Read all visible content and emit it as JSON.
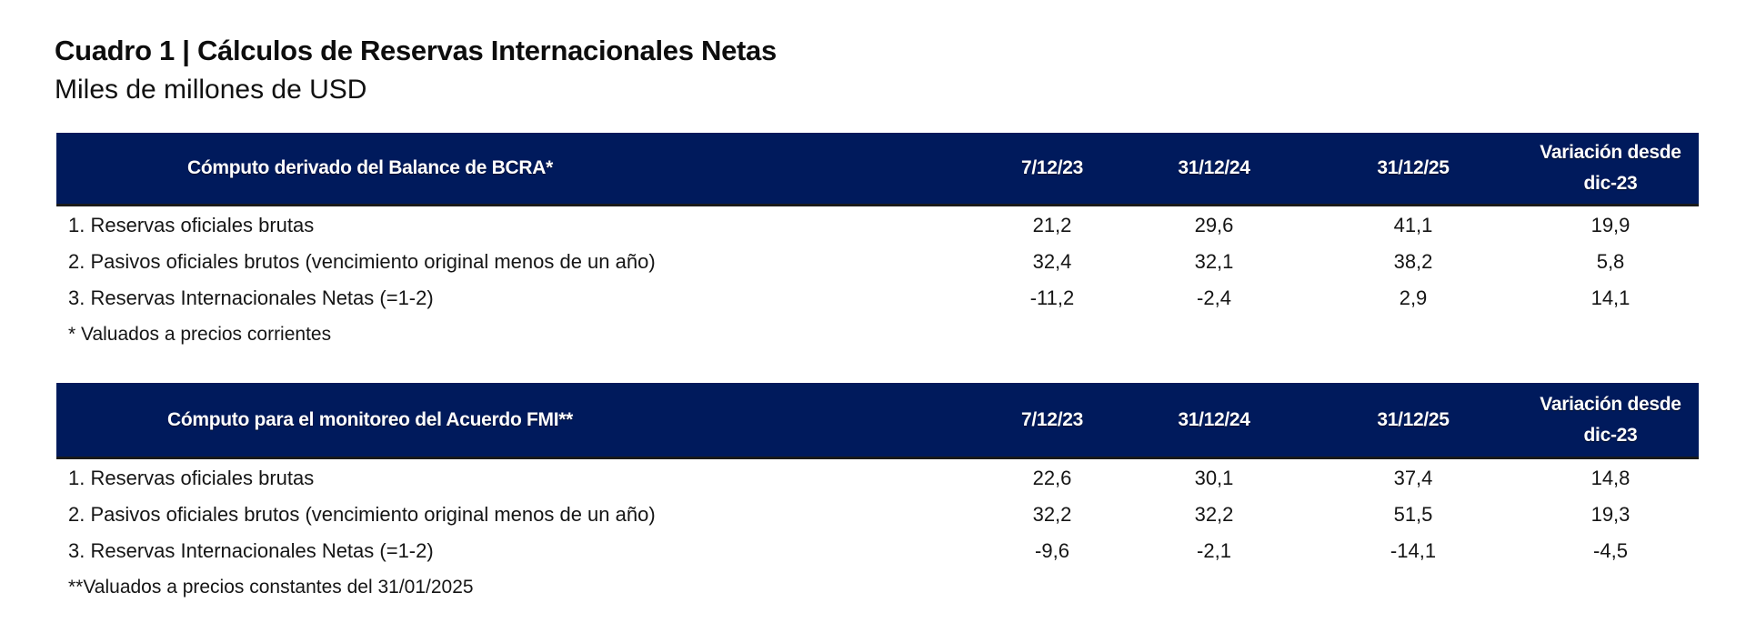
{
  "document": {
    "title": "Cuadro 1 | Cálculos de Reservas Internacionales Netas",
    "subtitle": "Miles de millones de USD"
  },
  "colors": {
    "header_bg": "#001a5c",
    "header_text": "#ffffff",
    "body_text": "#151515"
  },
  "tables": [
    {
      "header": {
        "label": "Cómputo derivado del Balance de BCRA*",
        "col1": "7/12/23",
        "col2": "31/12/24",
        "col3": "31/12/25",
        "col4_line1": "Variación desde",
        "col4_line2": "dic-23"
      },
      "rows": [
        {
          "label": "1. Reservas oficiales brutas",
          "v1": "21,2",
          "v2": "29,6",
          "v3": "41,1",
          "v4": "19,9"
        },
        {
          "label": "2. Pasivos oficiales brutos (vencimiento original menos de un año)",
          "v1": "32,4",
          "v2": "32,1",
          "v3": "38,2",
          "v4": "5,8"
        },
        {
          "label": "3. Reservas Internacionales Netas (=1-2)",
          "v1": "-11,2",
          "v2": "-2,4",
          "v3": "2,9",
          "v4": "14,1"
        }
      ],
      "footnote": "* Valuados a precios corrientes"
    },
    {
      "header": {
        "label": "Cómputo para el monitoreo del Acuerdo FMI**",
        "col1": "7/12/23",
        "col2": "31/12/24",
        "col3": "31/12/25",
        "col4_line1": "Variación desde",
        "col4_line2": "dic-23"
      },
      "rows": [
        {
          "label": "1. Reservas oficiales brutas",
          "v1": "22,6",
          "v2": "30,1",
          "v3": "37,4",
          "v4": "14,8"
        },
        {
          "label": "2. Pasivos oficiales brutos (vencimiento original menos de un año)",
          "v1": "32,2",
          "v2": "32,2",
          "v3": "51,5",
          "v4": "19,3"
        },
        {
          "label": "3. Reservas Internacionales Netas (=1-2)",
          "v1": "-9,6",
          "v2": "-2,1",
          "v3": "-14,1",
          "v4": "-4,5"
        }
      ],
      "footnote": "**Valuados a precios constantes del 31/01/2025"
    }
  ]
}
